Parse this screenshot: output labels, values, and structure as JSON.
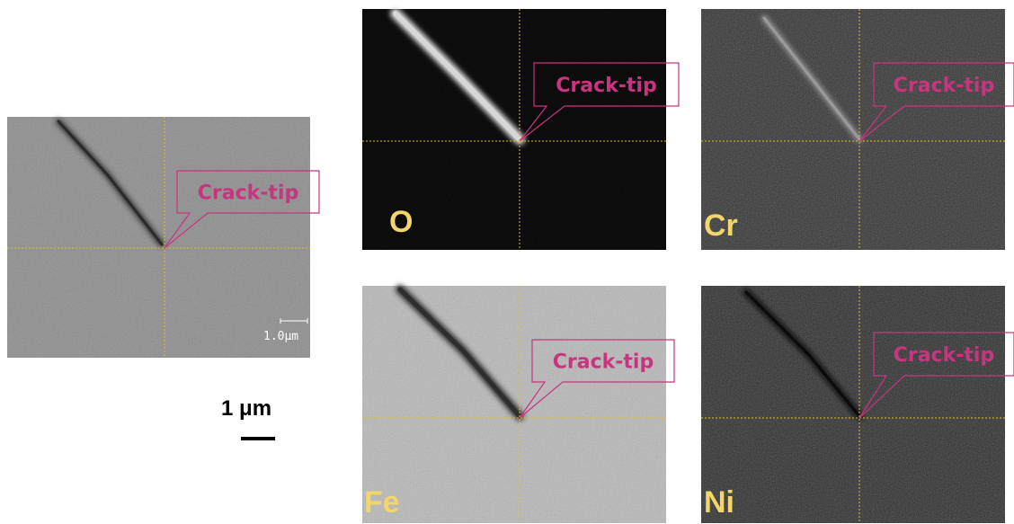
{
  "sem": {
    "callout": "Crack-tip",
    "scale_label": "1.0μm"
  },
  "maps": [
    {
      "element": "O",
      "callout": "Crack-tip"
    },
    {
      "element": "Cr",
      "callout": "Crack-tip"
    },
    {
      "element": "Fe",
      "callout": "Crack-tip"
    },
    {
      "element": "Ni",
      "callout": "Crack-tip"
    }
  ],
  "scale_bar": {
    "label": "1 μm"
  }
}
